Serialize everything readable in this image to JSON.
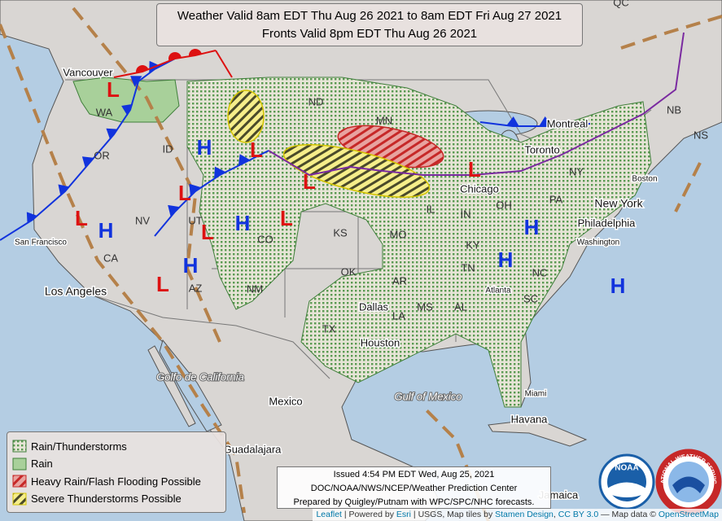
{
  "header": {
    "line1": "Weather Valid 8am EDT Thu Aug 26 2021 to 8am EDT Fri Aug 27 2021",
    "line2": "Fronts Valid 8pm EDT Thu Aug 26 2021"
  },
  "legend": [
    "Rain/Thunderstorms",
    "Rain",
    "Heavy Rain/Flash Flooding Possible",
    "Severe Thunderstorms Possible"
  ],
  "footer": [
    "Issued 4:54 PM EDT Wed, Aug 25, 2021",
    "DOC/NOAA/NWS/NCEP/Weather Prediction Center",
    "Prepared by Quigley/Putnam with WPC/SPC/NHC forecasts."
  ],
  "attribution": [
    "Leaflet",
    " | Powered by ",
    "Esri",
    " | USGS, Map tiles by ",
    "Stamen Design",
    ", ",
    "CC BY 3.0",
    " — Map data © ",
    "OpenStreetMap"
  ],
  "states": [
    "WA",
    "OR",
    "ID",
    "NV",
    "CA",
    "UT",
    "AZ",
    "ND",
    "MN",
    "CO",
    "NM",
    "KS",
    "OK",
    "TX",
    "MO",
    "AR",
    "LA",
    "MS",
    "AL",
    "IL",
    "IN",
    "OH",
    "KY",
    "TN",
    "NC",
    "SC",
    "PA",
    "NY",
    "NB",
    "NS",
    "QC"
  ],
  "cities": [
    "Vancouver",
    "San Francisco",
    "Los Angeles",
    "Dallas",
    "Houston",
    "Chicago",
    "Toronto",
    "Montreal",
    "New York",
    "Philadelphia",
    "Washington",
    "Atlanta",
    "Boston",
    "Miami",
    "Havana",
    "Mexico",
    "Guadalajara",
    "Jamaica"
  ],
  "water": [
    "Golfo de California",
    "Gulf of Mexico"
  ],
  "highs": [
    "H",
    "H",
    "H",
    "H",
    "H",
    "H",
    "H"
  ],
  "lows": [
    "L",
    "L",
    "L",
    "L",
    "L",
    "L",
    "L",
    "L",
    "L"
  ],
  "logos": {
    "noaa": "NOAA",
    "nws": "NATIONAL WEATHER SERVICE"
  }
}
